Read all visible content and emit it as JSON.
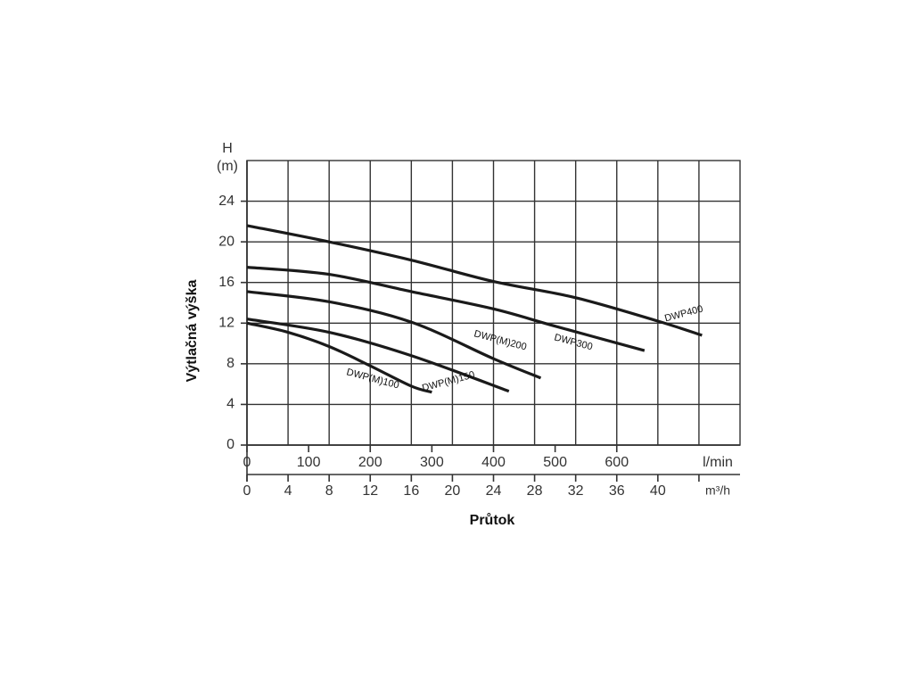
{
  "chart_data": {
    "type": "line",
    "ylabel_top": "H",
    "yunit": "(m)",
    "ylabel": "Výtlačná výška",
    "xlabel": "Průtok",
    "xunit": "m³/h",
    "x2unit": "l/min",
    "xlim": [
      0,
      48
    ],
    "xticks": [
      0,
      4,
      8,
      12,
      16,
      20,
      24,
      28,
      32,
      36,
      40,
      {
        "value": 44,
        "label": null
      }
    ],
    "x2lim": [
      0,
      800
    ],
    "x2ticks": [
      0,
      100,
      200,
      300,
      400,
      500,
      600
    ],
    "ylim": [
      0,
      28
    ],
    "yticks": [
      0,
      4,
      8,
      12,
      16,
      20,
      24
    ],
    "grid": true,
    "series": [
      {
        "name": "DWP400",
        "color": "#1a1a1a",
        "x": [
          0,
          8,
          16,
          24,
          32,
          40,
          44.3
        ],
        "values": [
          21.6,
          20.0,
          18.2,
          16.1,
          14.5,
          12.2,
          10.8
        ]
      },
      {
        "name": "DWP300",
        "color": "#1a1a1a",
        "x": [
          0,
          8,
          16,
          24,
          30,
          38.7
        ],
        "values": [
          17.5,
          16.8,
          15.1,
          13.4,
          11.7,
          9.3
        ]
      },
      {
        "name": "DWP(M)200",
        "color": "#1a1a1a",
        "x": [
          0,
          8,
          16,
          24,
          28.6
        ],
        "values": [
          15.1,
          14.1,
          12.1,
          8.5,
          6.6
        ]
      },
      {
        "name": "DWP(M)150",
        "color": "#1a1a1a",
        "x": [
          0,
          8,
          16,
          25.5
        ],
        "values": [
          12.4,
          11.1,
          8.8,
          5.3
        ]
      },
      {
        "name": "DWP(M)100",
        "color": "#1a1a1a",
        "x": [
          0,
          4,
          8,
          12,
          16,
          18
        ],
        "values": [
          12.0,
          11.1,
          9.7,
          7.8,
          5.8,
          5.2
        ]
      }
    ]
  }
}
